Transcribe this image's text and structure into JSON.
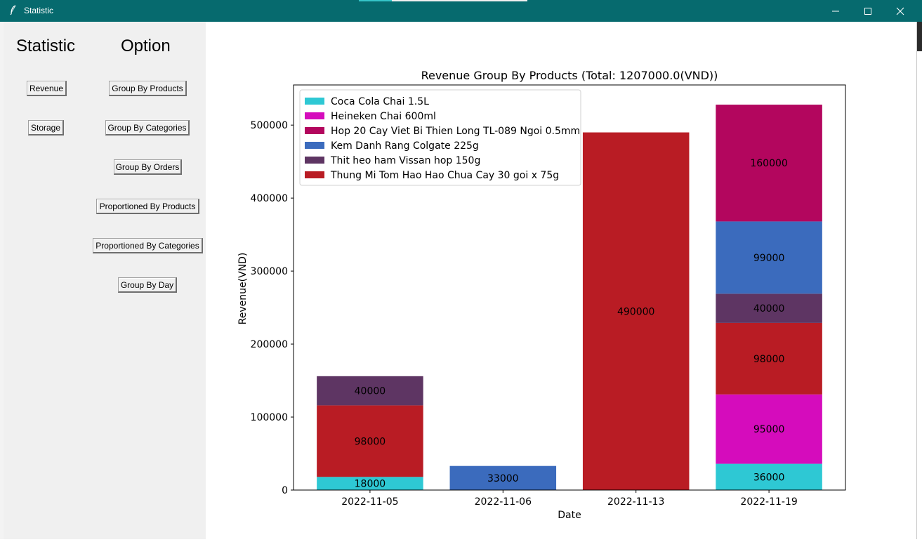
{
  "window": {
    "title": "Statistic",
    "icon": "feather-icon"
  },
  "sidebar": {
    "statistic_heading": "Statistic",
    "option_heading": "Option",
    "revenue_label": "Revenue",
    "storage_label": "Storage",
    "options": [
      "Group By Products",
      "Group By Categories",
      "Group By Orders",
      "Proportioned By Products",
      "Proportioned By Categories",
      "Group By Day"
    ]
  },
  "chart_data": {
    "type": "bar",
    "stacked": true,
    "title": "Revenue Group By Products (Total: 1207000.0(VND))",
    "xlabel": "Date",
    "ylabel": "Revenue(VND)",
    "categories": [
      "2022-11-05",
      "2022-11-06",
      "2022-11-13",
      "2022-11-19"
    ],
    "ylim": [
      0,
      555000
    ],
    "yticks": [
      0,
      100000,
      200000,
      300000,
      400000,
      500000
    ],
    "legend_position": "top-left",
    "series": [
      {
        "name": "Coca Cola Chai 1.5L",
        "color": "#2ec8d4",
        "values": [
          18000,
          0,
          0,
          36000
        ]
      },
      {
        "name": "Heineken Chai 600ml",
        "color": "#d50cbc",
        "values": [
          0,
          0,
          0,
          95000
        ]
      },
      {
        "name": "Hop 20 Cay Viet Bi Thien Long TL-089 Ngoi 0.5mm",
        "color": "#b3065e",
        "values": [
          0,
          0,
          0,
          160000
        ]
      },
      {
        "name": "Kem Danh Rang Colgate 225g",
        "color": "#3b6bbd",
        "values": [
          0,
          33000,
          0,
          99000
        ]
      },
      {
        "name": "Thit heo ham Vissan hop 150g",
        "color": "#5e3563",
        "values": [
          40000,
          0,
          0,
          40000
        ]
      },
      {
        "name": "Thung Mi Tom Hao Hao Chua Cay 30 goi x 75g",
        "color": "#b91c24",
        "values": [
          98000,
          0,
          490000,
          98000
        ]
      }
    ],
    "stack_order": [
      [
        "Coca Cola Chai 1.5L",
        "Thung Mi Tom Hao Hao Chua Cay 30 goi x 75g",
        "Thit heo ham Vissan hop 150g"
      ],
      [
        "Kem Danh Rang Colgate 225g"
      ],
      [
        "Thung Mi Tom Hao Hao Chua Cay 30 goi x 75g"
      ],
      [
        "Coca Cola Chai 1.5L",
        "Heineken Chai 600ml",
        "Thung Mi Tom Hao Hao Chua Cay 30 goi x 75g",
        "Thit heo ham Vissan hop 150g",
        "Kem Danh Rang Colgate 225g",
        "Hop 20 Cay Viet Bi Thien Long TL-089 Ngoi 0.5mm"
      ]
    ]
  }
}
